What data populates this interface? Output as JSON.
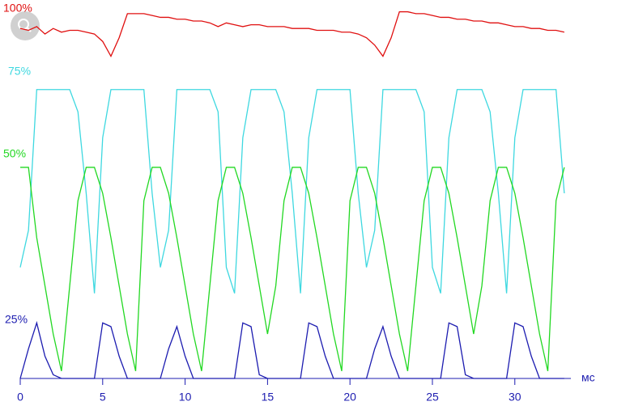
{
  "chart_data": {
    "type": "line",
    "x_label": "мс",
    "xlim": [
      0,
      33.4
    ],
    "xticks": [
      0,
      5,
      10,
      15,
      20,
      25,
      30
    ],
    "ylim": [
      0,
      100
    ],
    "x": [
      0,
      0.5,
      1,
      1.5,
      2,
      2.5,
      3,
      3.5,
      4,
      4.5,
      5,
      5.5,
      6,
      6.5,
      7,
      7.5,
      8,
      8.5,
      9,
      9.5,
      10,
      10.5,
      11,
      11.5,
      12,
      12.5,
      13,
      13.5,
      14,
      14.5,
      15,
      15.5,
      16,
      16.5,
      17,
      17.5,
      18,
      18.5,
      19,
      19.5,
      20,
      20.5,
      21,
      21.5,
      22,
      22.5,
      23,
      23.5,
      24,
      24.5,
      25,
      25.5,
      26,
      26.5,
      27,
      27.5,
      28,
      28.5,
      29,
      29.5,
      30,
      30.5,
      31,
      31.5,
      32,
      32.5,
      33
    ],
    "series": [
      {
        "name": "100%",
        "color": "#e01010",
        "values": [
          94.5,
          94,
          95,
          93,
          94.5,
          93.5,
          94,
          94,
          93.5,
          93,
          91,
          87,
          92,
          98.5,
          98.5,
          98.5,
          98,
          97.5,
          97.5,
          97,
          97,
          96.5,
          96.5,
          96,
          95,
          96,
          95.5,
          95,
          95.5,
          95.5,
          95,
          95,
          95,
          94.5,
          94.5,
          94.5,
          94,
          94,
          94,
          93.5,
          93.5,
          93,
          92,
          90,
          87,
          92,
          99,
          99,
          98.5,
          98.5,
          98,
          97.5,
          97.5,
          97,
          97,
          96.5,
          96.5,
          96,
          96,
          95.5,
          95,
          95,
          94.5,
          94.5,
          94,
          94,
          93.5
        ]
      },
      {
        "name": "75%",
        "color": "#3ed8e0",
        "values": [
          30,
          40,
          78,
          78,
          78,
          78,
          78,
          72,
          50,
          23,
          65,
          78,
          78,
          78,
          78,
          78,
          50,
          30,
          40,
          78,
          78,
          78,
          78,
          78,
          72,
          30,
          23,
          65,
          78,
          78,
          78,
          78,
          72,
          50,
          23,
          65,
          78,
          78,
          78,
          78,
          78,
          50,
          30,
          40,
          78,
          78,
          78,
          78,
          78,
          72,
          30,
          23,
          65,
          78,
          78,
          78,
          78,
          72,
          50,
          23,
          65,
          78,
          78,
          78,
          78,
          78,
          50
        ]
      },
      {
        "name": "50%",
        "color": "#22d822",
        "values": [
          57,
          57,
          38,
          25,
          12,
          2,
          25,
          48,
          57,
          57,
          50,
          38,
          25,
          12,
          2,
          48,
          57,
          57,
          50,
          38,
          25,
          12,
          2,
          25,
          48,
          57,
          57,
          50,
          38,
          25,
          12,
          25,
          48,
          57,
          57,
          50,
          38,
          25,
          12,
          2,
          48,
          57,
          57,
          50,
          38,
          25,
          12,
          2,
          25,
          48,
          57,
          57,
          50,
          38,
          25,
          12,
          25,
          48,
          57,
          57,
          50,
          38,
          25,
          12,
          2,
          48,
          57
        ]
      },
      {
        "name": "25%",
        "color": "#1c1cb0",
        "values": [
          0,
          8,
          15,
          6,
          1,
          0,
          0,
          0,
          0,
          0,
          15,
          14,
          6,
          0,
          0,
          0,
          0,
          0,
          8,
          14,
          6,
          0,
          0,
          0,
          0,
          0,
          0,
          15,
          14,
          1,
          0,
          0,
          0,
          0,
          0,
          15,
          14,
          6,
          0,
          0,
          0,
          0,
          0,
          8,
          14,
          6,
          0,
          0,
          0,
          0,
          0,
          0,
          15,
          14,
          1,
          0,
          0,
          0,
          0,
          0,
          15,
          14,
          6,
          0,
          0,
          0,
          0
        ]
      }
    ]
  }
}
